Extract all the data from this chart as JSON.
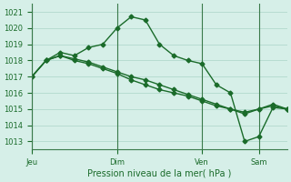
{
  "title": "",
  "xlabel": "Pression niveau de la mer( hPa )",
  "ylabel": "",
  "bg_color": "#d6efe8",
  "grid_color": "#aad4c8",
  "line_color": "#1a6b2a",
  "ylim": [
    1012.5,
    1021.5
  ],
  "yticks": [
    1013,
    1014,
    1015,
    1016,
    1017,
    1018,
    1019,
    1020,
    1021
  ],
  "day_labels": [
    "Jeu",
    "Dim",
    "Ven",
    "Sam"
  ],
  "day_positions": [
    0,
    36,
    72,
    96
  ],
  "series1_x": [
    0,
    6,
    12,
    18,
    24,
    30,
    36,
    42,
    48,
    54,
    60,
    66,
    72,
    78,
    84,
    90,
    96,
    102,
    108
  ],
  "series1_y": [
    1017.0,
    1018.0,
    1018.5,
    1018.3,
    1018.8,
    1019.0,
    1020.0,
    1020.7,
    1020.5,
    1019.0,
    1018.3,
    1018.0,
    1017.8,
    1016.5,
    1016.0,
    1013.0,
    1013.3,
    1015.1,
    1015.0
  ],
  "series2_x": [
    0,
    6,
    12,
    18,
    24,
    30,
    36,
    42,
    48,
    54,
    60,
    66,
    72,
    78,
    84,
    90,
    96,
    102,
    108
  ],
  "series2_y": [
    1017.0,
    1018.0,
    1018.3,
    1018.0,
    1017.8,
    1017.5,
    1017.2,
    1016.8,
    1016.5,
    1016.2,
    1016.0,
    1015.8,
    1015.5,
    1015.2,
    1015.0,
    1014.8,
    1015.0,
    1015.3,
    1015.0
  ],
  "series3_x": [
    0,
    6,
    12,
    18,
    24,
    30,
    36,
    42,
    48,
    54,
    60,
    66,
    72,
    78,
    84,
    90,
    96,
    102,
    108
  ],
  "series3_y": [
    1017.0,
    1018.0,
    1018.3,
    1018.1,
    1017.9,
    1017.6,
    1017.3,
    1017.0,
    1016.8,
    1016.5,
    1016.2,
    1015.9,
    1015.6,
    1015.3,
    1015.0,
    1014.7,
    1015.0,
    1015.2,
    1015.0
  ]
}
